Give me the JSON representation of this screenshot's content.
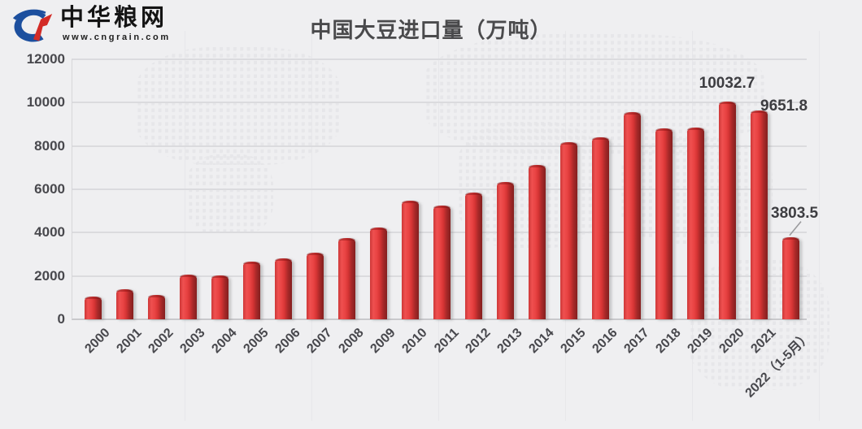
{
  "logo": {
    "icon": "cngrain-swoosh-icon",
    "name": "中华粮网",
    "url": "www.cngrain.com"
  },
  "chart_data": {
    "type": "bar",
    "title": "中国大豆进口量（万吨）",
    "categories": [
      "2000",
      "2001",
      "2002",
      "2003",
      "2004",
      "2005",
      "2006",
      "2007",
      "2008",
      "2009",
      "2010",
      "2011",
      "2012",
      "2013",
      "2014",
      "2015",
      "2016",
      "2017",
      "2018",
      "2019",
      "2020",
      "2021",
      "2022（1-5月）"
    ],
    "values": [
      1042,
      1394,
      1132,
      2074,
      2023,
      2659,
      2824,
      3082,
      3744,
      4255,
      5480,
      5264,
      5838,
      6338,
      7140,
      8169,
      8391,
      9553,
      8803,
      8851,
      10032.7,
      9651.8,
      3803.5
    ],
    "xlabel": "",
    "ylabel": "",
    "ylim": [
      0,
      12000
    ],
    "y_ticks": [
      0,
      2000,
      4000,
      6000,
      8000,
      10000,
      12000
    ],
    "grid": "horizontal",
    "legend": "none",
    "bar_color": "#e23b3b",
    "data_labels": [
      {
        "category": "2020",
        "text": "10032.7",
        "placement": "above-center"
      },
      {
        "category": "2021",
        "text": "9651.8",
        "placement": "right-of-top"
      },
      {
        "category": "2022（1-5月）",
        "text": "3803.5",
        "placement": "above-with-leader"
      }
    ]
  }
}
